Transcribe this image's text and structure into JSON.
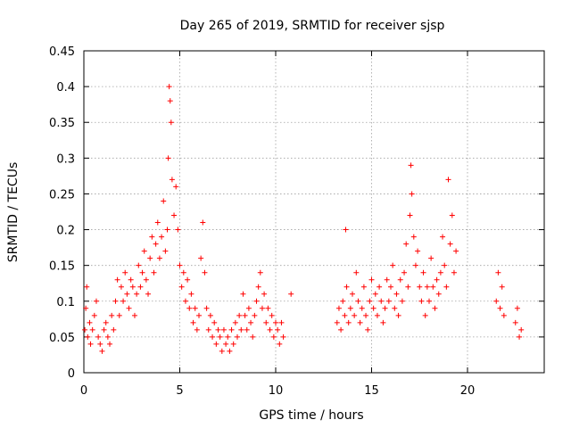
{
  "chart_data": {
    "type": "scatter",
    "title": "Day 265 of 2019, SRMTID for receiver sjsp",
    "xlabel": "GPS time / hours",
    "ylabel": "SRMTID / TECUs",
    "xlim": [
      0,
      24
    ],
    "ylim": [
      0,
      0.45
    ],
    "xticks": [
      0,
      5,
      10,
      15,
      20
    ],
    "yticks": [
      0,
      0.05,
      0.1,
      0.15,
      0.2,
      0.25,
      0.3,
      0.35,
      0.4,
      0.45
    ],
    "grid": true,
    "marker": "+",
    "color": "#ff0000",
    "series": [
      {
        "name": "SRMTID",
        "points": [
          [
            0.05,
            0.06
          ],
          [
            0.1,
            0.09
          ],
          [
            0.15,
            0.12
          ],
          [
            0.2,
            0.05
          ],
          [
            0.3,
            0.07
          ],
          [
            0.35,
            0.04
          ],
          [
            0.45,
            0.06
          ],
          [
            0.55,
            0.08
          ],
          [
            0.65,
            0.1
          ],
          [
            0.75,
            0.05
          ],
          [
            0.85,
            0.04
          ],
          [
            0.95,
            0.03
          ],
          [
            1.05,
            0.06
          ],
          [
            1.15,
            0.07
          ],
          [
            1.25,
            0.05
          ],
          [
            1.35,
            0.04
          ],
          [
            1.45,
            0.08
          ],
          [
            1.55,
            0.06
          ],
          [
            1.65,
            0.1
          ],
          [
            1.75,
            0.13
          ],
          [
            1.85,
            0.08
          ],
          [
            1.95,
            0.12
          ],
          [
            2.05,
            0.1
          ],
          [
            2.15,
            0.14
          ],
          [
            2.25,
            0.11
          ],
          [
            2.35,
            0.09
          ],
          [
            2.45,
            0.13
          ],
          [
            2.55,
            0.12
          ],
          [
            2.65,
            0.08
          ],
          [
            2.75,
            0.11
          ],
          [
            2.85,
            0.15
          ],
          [
            2.95,
            0.12
          ],
          [
            3.05,
            0.14
          ],
          [
            3.15,
            0.17
          ],
          [
            3.25,
            0.13
          ],
          [
            3.35,
            0.11
          ],
          [
            3.45,
            0.16
          ],
          [
            3.55,
            0.19
          ],
          [
            3.65,
            0.14
          ],
          [
            3.75,
            0.18
          ],
          [
            3.85,
            0.21
          ],
          [
            3.95,
            0.16
          ],
          [
            4.05,
            0.19
          ],
          [
            4.15,
            0.24
          ],
          [
            4.25,
            0.17
          ],
          [
            4.35,
            0.2
          ],
          [
            4.4,
            0.3
          ],
          [
            4.45,
            0.4
          ],
          [
            4.5,
            0.38
          ],
          [
            4.55,
            0.35
          ],
          [
            4.6,
            0.27
          ],
          [
            4.7,
            0.22
          ],
          [
            4.8,
            0.26
          ],
          [
            4.9,
            0.2
          ],
          [
            5.0,
            0.15
          ],
          [
            5.1,
            0.12
          ],
          [
            5.2,
            0.14
          ],
          [
            5.3,
            0.1
          ],
          [
            5.4,
            0.13
          ],
          [
            5.5,
            0.09
          ],
          [
            5.6,
            0.11
          ],
          [
            5.7,
            0.07
          ],
          [
            5.8,
            0.09
          ],
          [
            5.9,
            0.06
          ],
          [
            6.0,
            0.08
          ],
          [
            6.1,
            0.16
          ],
          [
            6.2,
            0.21
          ],
          [
            6.3,
            0.14
          ],
          [
            6.4,
            0.09
          ],
          [
            6.5,
            0.06
          ],
          [
            6.6,
            0.08
          ],
          [
            6.7,
            0.05
          ],
          [
            6.8,
            0.07
          ],
          [
            6.9,
            0.04
          ],
          [
            7.0,
            0.06
          ],
          [
            7.1,
            0.05
          ],
          [
            7.2,
            0.03
          ],
          [
            7.3,
            0.06
          ],
          [
            7.4,
            0.04
          ],
          [
            7.5,
            0.05
          ],
          [
            7.6,
            0.03
          ],
          [
            7.7,
            0.06
          ],
          [
            7.8,
            0.04
          ],
          [
            7.9,
            0.07
          ],
          [
            8.0,
            0.05
          ],
          [
            8.1,
            0.08
          ],
          [
            8.2,
            0.06
          ],
          [
            8.3,
            0.11
          ],
          [
            8.4,
            0.08
          ],
          [
            8.5,
            0.06
          ],
          [
            8.6,
            0.09
          ],
          [
            8.7,
            0.07
          ],
          [
            8.8,
            0.05
          ],
          [
            8.9,
            0.08
          ],
          [
            9.0,
            0.1
          ],
          [
            9.1,
            0.12
          ],
          [
            9.2,
            0.14
          ],
          [
            9.3,
            0.09
          ],
          [
            9.4,
            0.11
          ],
          [
            9.5,
            0.07
          ],
          [
            9.6,
            0.09
          ],
          [
            9.7,
            0.06
          ],
          [
            9.8,
            0.08
          ],
          [
            9.9,
            0.05
          ],
          [
            10.0,
            0.07
          ],
          [
            10.1,
            0.06
          ],
          [
            10.2,
            0.04
          ],
          [
            10.3,
            0.07
          ],
          [
            10.4,
            0.05
          ],
          [
            10.8,
            0.11
          ],
          [
            13.2,
            0.07
          ],
          [
            13.3,
            0.09
          ],
          [
            13.4,
            0.06
          ],
          [
            13.5,
            0.1
          ],
          [
            13.6,
            0.08
          ],
          [
            13.65,
            0.2
          ],
          [
            13.7,
            0.12
          ],
          [
            13.8,
            0.07
          ],
          [
            13.9,
            0.09
          ],
          [
            14.0,
            0.11
          ],
          [
            14.1,
            0.08
          ],
          [
            14.2,
            0.14
          ],
          [
            14.3,
            0.1
          ],
          [
            14.4,
            0.07
          ],
          [
            14.5,
            0.09
          ],
          [
            14.6,
            0.12
          ],
          [
            14.7,
            0.08
          ],
          [
            14.8,
            0.06
          ],
          [
            14.9,
            0.1
          ],
          [
            15.0,
            0.13
          ],
          [
            15.1,
            0.09
          ],
          [
            15.2,
            0.11
          ],
          [
            15.3,
            0.08
          ],
          [
            15.4,
            0.12
          ],
          [
            15.5,
            0.1
          ],
          [
            15.6,
            0.07
          ],
          [
            15.7,
            0.09
          ],
          [
            15.8,
            0.13
          ],
          [
            15.9,
            0.1
          ],
          [
            16.0,
            0.12
          ],
          [
            16.1,
            0.15
          ],
          [
            16.2,
            0.09
          ],
          [
            16.3,
            0.11
          ],
          [
            16.4,
            0.08
          ],
          [
            16.5,
            0.13
          ],
          [
            16.6,
            0.1
          ],
          [
            16.7,
            0.14
          ],
          [
            16.8,
            0.18
          ],
          [
            16.9,
            0.12
          ],
          [
            17.0,
            0.22
          ],
          [
            17.05,
            0.29
          ],
          [
            17.1,
            0.25
          ],
          [
            17.2,
            0.19
          ],
          [
            17.3,
            0.15
          ],
          [
            17.4,
            0.17
          ],
          [
            17.5,
            0.12
          ],
          [
            17.6,
            0.1
          ],
          [
            17.7,
            0.14
          ],
          [
            17.8,
            0.08
          ],
          [
            17.9,
            0.12
          ],
          [
            18.0,
            0.1
          ],
          [
            18.1,
            0.16
          ],
          [
            18.2,
            0.12
          ],
          [
            18.3,
            0.09
          ],
          [
            18.4,
            0.13
          ],
          [
            18.5,
            0.11
          ],
          [
            18.6,
            0.14
          ],
          [
            18.7,
            0.19
          ],
          [
            18.8,
            0.15
          ],
          [
            18.9,
            0.12
          ],
          [
            19.0,
            0.27
          ],
          [
            19.1,
            0.18
          ],
          [
            19.2,
            0.22
          ],
          [
            19.3,
            0.14
          ],
          [
            19.4,
            0.17
          ],
          [
            21.5,
            0.1
          ],
          [
            21.6,
            0.14
          ],
          [
            21.7,
            0.09
          ],
          [
            21.8,
            0.12
          ],
          [
            21.9,
            0.08
          ],
          [
            22.5,
            0.07
          ],
          [
            22.6,
            0.09
          ],
          [
            22.7,
            0.05
          ],
          [
            22.8,
            0.06
          ]
        ]
      }
    ]
  }
}
